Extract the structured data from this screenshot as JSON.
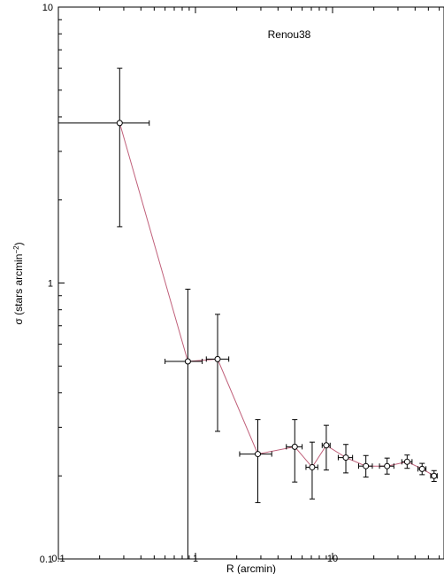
{
  "chart_data": {
    "type": "scatter",
    "title": "Renou38",
    "xlabel": "R (arcmin)",
    "ylabel_main": "σ (stars arcmin",
    "ylabel_sup": "−2",
    "ylabel_close": ")",
    "xscale": "log",
    "yscale": "log",
    "xlim": [
      0.1,
      70
    ],
    "ylim": [
      0.1,
      10
    ],
    "xticks": [
      {
        "value": 0.1,
        "label": "0.1"
      },
      {
        "value": 1,
        "label": "1"
      },
      {
        "value": 10,
        "label": "10"
      }
    ],
    "yticks": [
      {
        "value": 0.1,
        "label": "0.1"
      },
      {
        "value": 1,
        "label": "1"
      },
      {
        "value": 10,
        "label": "10"
      }
    ],
    "line_color": "#c0607a",
    "points": [
      {
        "x": 0.28,
        "y": 3.8,
        "xlo": 0.1,
        "xhi": 0.46,
        "ylo": 1.6,
        "yhi": 6.0
      },
      {
        "x": 0.88,
        "y": 0.52,
        "xlo": 0.6,
        "xhi": 1.12,
        "ylo": 0.1,
        "yhi": 0.95
      },
      {
        "x": 1.45,
        "y": 0.53,
        "xlo": 1.2,
        "xhi": 1.75,
        "ylo": 0.29,
        "yhi": 0.77
      },
      {
        "x": 2.85,
        "y": 0.24,
        "xlo": 2.1,
        "xhi": 3.6,
        "ylo": 0.16,
        "yhi": 0.32
      },
      {
        "x": 5.3,
        "y": 0.255,
        "xlo": 4.6,
        "xhi": 6.0,
        "ylo": 0.19,
        "yhi": 0.32
      },
      {
        "x": 7.1,
        "y": 0.215,
        "xlo": 6.4,
        "xhi": 7.8,
        "ylo": 0.165,
        "yhi": 0.265
      },
      {
        "x": 9.0,
        "y": 0.258,
        "xlo": 8.4,
        "xhi": 9.6,
        "ylo": 0.21,
        "yhi": 0.305
      },
      {
        "x": 12.5,
        "y": 0.233,
        "xlo": 11.0,
        "xhi": 14.0,
        "ylo": 0.205,
        "yhi": 0.26
      },
      {
        "x": 17.5,
        "y": 0.217,
        "xlo": 15.5,
        "xhi": 19.5,
        "ylo": 0.198,
        "yhi": 0.237
      },
      {
        "x": 25.0,
        "y": 0.217,
        "xlo": 22.0,
        "xhi": 28.0,
        "ylo": 0.203,
        "yhi": 0.232
      },
      {
        "x": 35.0,
        "y": 0.225,
        "xlo": 32.0,
        "xhi": 38.0,
        "ylo": 0.213,
        "yhi": 0.238
      },
      {
        "x": 45.0,
        "y": 0.212,
        "xlo": 42.0,
        "xhi": 48.0,
        "ylo": 0.202,
        "yhi": 0.222
      },
      {
        "x": 55.0,
        "y": 0.2,
        "xlo": 52.0,
        "xhi": 58.0,
        "ylo": 0.191,
        "yhi": 0.209
      }
    ],
    "grid": false,
    "legend": "none"
  }
}
